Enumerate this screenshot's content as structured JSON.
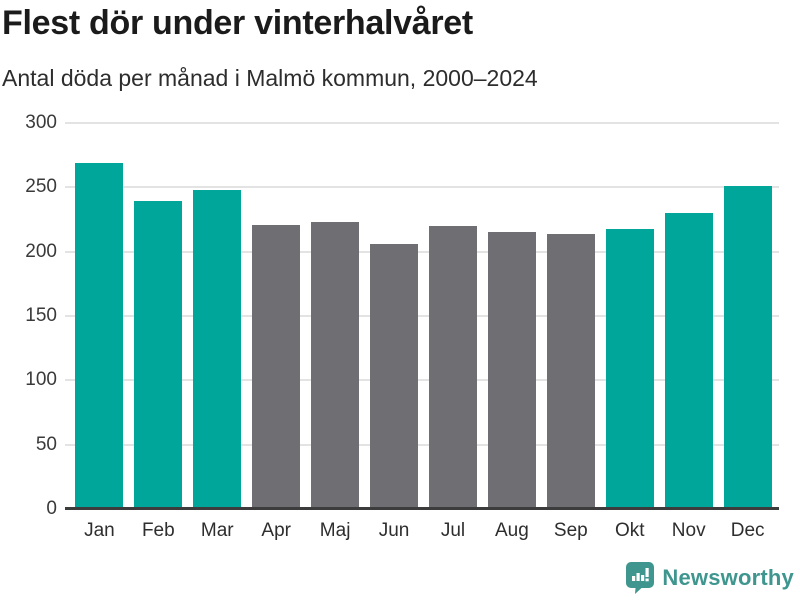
{
  "header": {
    "title": "Flest dör under vinterhalvåret",
    "subtitle": "Antal döda per månad i Malmö kommun, 2000–2024"
  },
  "chart_data": {
    "type": "bar",
    "title": "Flest dör under vinterhalvåret",
    "subtitle": "Antal döda per månad i Malmö kommun, 2000–2024",
    "categories": [
      "Jan",
      "Feb",
      "Mar",
      "Apr",
      "Maj",
      "Jun",
      "Jul",
      "Aug",
      "Sep",
      "Okt",
      "Nov",
      "Dec"
    ],
    "values": [
      269,
      239,
      248,
      221,
      223,
      206,
      220,
      215,
      214,
      218,
      230,
      251
    ],
    "highlighted": [
      true,
      true,
      true,
      false,
      false,
      false,
      false,
      false,
      false,
      true,
      true,
      true
    ],
    "xlabel": "",
    "ylabel": "",
    "ylim": [
      0,
      300
    ],
    "yticks": [
      0,
      50,
      100,
      150,
      200,
      250,
      300
    ],
    "grid": true,
    "legend": "none",
    "highlight_color": "#00a69a",
    "base_color": "#6e6e73",
    "gridline_color": "#e3e3e3",
    "axis_color": "#3c3c3c"
  },
  "footer": {
    "brand": "Newsworthy",
    "brand_color": "#3e968f",
    "logo_icon": "newsworthy-speech-bubble-chart-icon"
  }
}
